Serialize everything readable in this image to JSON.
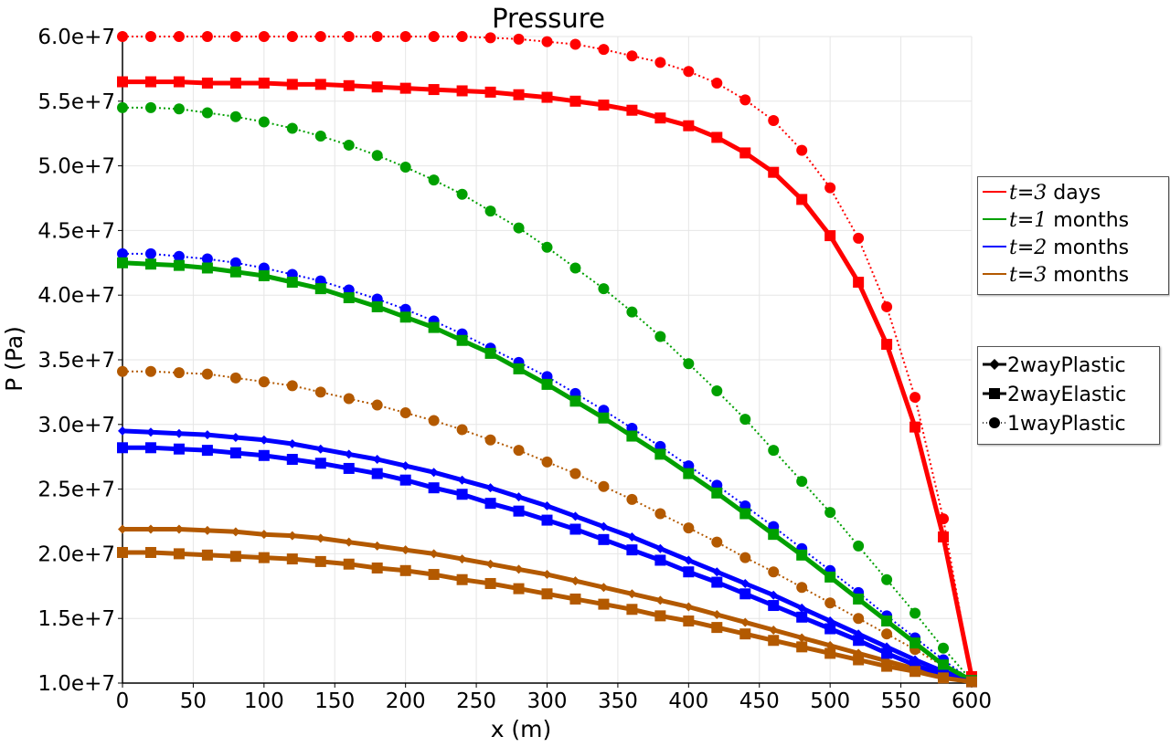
{
  "chart_data": {
    "type": "line",
    "title": "Pressure",
    "xlabel": "x (m)",
    "ylabel": "P (Pa)",
    "xlim": [
      0,
      600
    ],
    "ylim": [
      10000000,
      60000000
    ],
    "x_ticks": [
      "0",
      "50",
      "100",
      "150",
      "200",
      "250",
      "300",
      "350",
      "400",
      "450",
      "500",
      "550",
      "600"
    ],
    "y_ticks": [
      "1.0e+7",
      "1.5e+7",
      "2.0e+7",
      "2.5e+7",
      "3.0e+7",
      "3.5e+7",
      "4.0e+7",
      "4.5e+7",
      "5.0e+7",
      "5.5e+7",
      "6.0e+7"
    ],
    "grid": true,
    "x": [
      0,
      20,
      40,
      60,
      80,
      100,
      120,
      140,
      160,
      180,
      200,
      220,
      240,
      260,
      280,
      300,
      320,
      340,
      360,
      380,
      400,
      420,
      440,
      460,
      480,
      500,
      520,
      540,
      560,
      580,
      600
    ],
    "time_legend": [
      {
        "t": "t",
        "eq": "=",
        "n": "3",
        "unit": "days",
        "color": "#ff0000"
      },
      {
        "t": "t",
        "eq": "=",
        "n": "1",
        "unit": "months",
        "color": "#00a000"
      },
      {
        "t": "t",
        "eq": "=",
        "n": "2",
        "unit": "months",
        "color": "#0000ff"
      },
      {
        "t": "t",
        "eq": "=",
        "n": "3",
        "unit": "months",
        "color": "#b35900"
      }
    ],
    "type_legend": [
      {
        "label": "2wayPlastic",
        "marker": "diamond",
        "line": "solid"
      },
      {
        "label": "2wayElastic",
        "marker": "square",
        "line": "solid"
      },
      {
        "label": "1wayPlastic",
        "marker": "circle",
        "line": "dotted"
      }
    ],
    "series": [
      {
        "time": 0,
        "kind": "1wayPlastic",
        "color": "#ff0000",
        "values": [
          60000000.0,
          60000000.0,
          60000000.0,
          60000000.0,
          60000000.0,
          60000000.0,
          60000000.0,
          60000000.0,
          60000000.0,
          60000000.0,
          60000000.0,
          60000000.0,
          60000000.0,
          59900000.0,
          59800000.0,
          59600000.0,
          59400000.0,
          59000000.0,
          58500000.0,
          58000000.0,
          57300000.0,
          56400000.0,
          55100000.0,
          53500000.0,
          51200000.0,
          48300000.0,
          44400000.0,
          39100000.0,
          32100000.0,
          22700000.0,
          10500000.0
        ]
      },
      {
        "time": 0,
        "kind": "2wayElastic",
        "color": "#ff0000",
        "values": [
          56500000.0,
          56500000.0,
          56500000.0,
          56400000.0,
          56400000.0,
          56400000.0,
          56300000.0,
          56300000.0,
          56200000.0,
          56100000.0,
          56000000.0,
          55900000.0,
          55800000.0,
          55700000.0,
          55500000.0,
          55300000.0,
          55000000.0,
          54700000.0,
          54300000.0,
          53700000.0,
          53100000.0,
          52200000.0,
          51000000.0,
          49500000.0,
          47400000.0,
          44600000.0,
          41000000.0,
          36200000.0,
          29800000.0,
          21300000.0,
          10500000.0
        ]
      },
      {
        "time": 1,
        "kind": "1wayPlastic",
        "color": "#00a000",
        "values": [
          54500000.0,
          54500000.0,
          54400000.0,
          54100000.0,
          53800000.0,
          53400000.0,
          52900000.0,
          52300000.0,
          51600000.0,
          50800000.0,
          49900000.0,
          48900000.0,
          47800000.0,
          46500000.0,
          45200000.0,
          43700000.0,
          42100000.0,
          40500000.0,
          38700000.0,
          36800000.0,
          34700000.0,
          32600000.0,
          30400000.0,
          28000000.0,
          25600000.0,
          23200000.0,
          20600000.0,
          18000000.0,
          15400000.0,
          12700000.0,
          10200000.0
        ]
      },
      {
        "time": 1,
        "kind": "2wayElastic",
        "color": "#00a000",
        "values": [
          42500000.0,
          42400000.0,
          42300000.0,
          42100000.0,
          41800000.0,
          41500000.0,
          41000000.0,
          40500000.0,
          39800000.0,
          39100000.0,
          38300000.0,
          37500000.0,
          36500000.0,
          35500000.0,
          34300000.0,
          33100000.0,
          31800000.0,
          30500000.0,
          29100000.0,
          27700000.0,
          26200000.0,
          24700000.0,
          23100000.0,
          21500000.0,
          19900000.0,
          18200000.0,
          16500000.0,
          14800000.0,
          13100000.0,
          11400000.0,
          10200000.0
        ]
      },
      {
        "time": 2,
        "kind": "1wayPlastic",
        "color": "#0000ff",
        "values": [
          43200000.0,
          43200000.0,
          43000000.0,
          42800000.0,
          42500000.0,
          42100000.0,
          41600000.0,
          41100000.0,
          40400000.0,
          39700000.0,
          38900000.0,
          38000000.0,
          37000000.0,
          35900000.0,
          34800000.0,
          33700000.0,
          32400000.0,
          31100000.0,
          29700000.0,
          28300000.0,
          26800000.0,
          25300000.0,
          23700000.0,
          22100000.0,
          20400000.0,
          18700000.0,
          17000000.0,
          15200000.0,
          13500000.0,
          11800000.0,
          10200000.0
        ]
      },
      {
        "time": 2,
        "kind": "2wayPlastic",
        "color": "#0000ff",
        "values": [
          29500000.0,
          29400000.0,
          29300000.0,
          29200000.0,
          29000000.0,
          28800000.0,
          28500000.0,
          28100000.0,
          27700000.0,
          27300000.0,
          26800000.0,
          26300000.0,
          25700000.0,
          25100000.0,
          24400000.0,
          23700000.0,
          22900000.0,
          22100000.0,
          21300000.0,
          20400000.0,
          19500000.0,
          18600000.0,
          17700000.0,
          16800000.0,
          15800000.0,
          14800000.0,
          13800000.0,
          12800000.0,
          11800000.0,
          10900000.0,
          10200000.0
        ]
      },
      {
        "time": 2,
        "kind": "2wayElastic",
        "color": "#0000ff",
        "values": [
          28200000.0,
          28200000.0,
          28100000.0,
          28000000.0,
          27800000.0,
          27600000.0,
          27300000.0,
          27000000.0,
          26600000.0,
          26200000.0,
          25700000.0,
          25100000.0,
          24600000.0,
          23900000.0,
          23300000.0,
          22600000.0,
          21900000.0,
          21100000.0,
          20300000.0,
          19500000.0,
          18600000.0,
          17800000.0,
          16900000.0,
          16000000.0,
          15100000.0,
          14200000.0,
          13300000.0,
          12300000.0,
          11400000.0,
          10600000.0,
          10100000.0
        ]
      },
      {
        "time": 3,
        "kind": "1wayPlastic",
        "color": "#b35900",
        "values": [
          34100000.0,
          34100000.0,
          34000000.0,
          33900000.0,
          33600000.0,
          33300000.0,
          33000000.0,
          32500000.0,
          32000000.0,
          31500000.0,
          30900000.0,
          30300000.0,
          29600000.0,
          28800000.0,
          28000000.0,
          27100000.0,
          26200000.0,
          25200000.0,
          24200000.0,
          23100000.0,
          22000000.0,
          20900000.0,
          19700000.0,
          18600000.0,
          17400000.0,
          16200000.0,
          15000000.0,
          13800000.0,
          12600000.0,
          11300000.0,
          10100000.0
        ]
      },
      {
        "time": 3,
        "kind": "2wayPlastic",
        "color": "#b35900",
        "values": [
          21900000.0,
          21900000.0,
          21900000.0,
          21800000.0,
          21700000.0,
          21500000.0,
          21400000.0,
          21200000.0,
          20900000.0,
          20600000.0,
          20300000.0,
          20000000.0,
          19600000.0,
          19200000.0,
          18800000.0,
          18400000.0,
          17900000.0,
          17400000.0,
          16900000.0,
          16400000.0,
          15900000.0,
          15300000.0,
          14700000.0,
          14100000.0,
          13500000.0,
          12900000.0,
          12300000.0,
          11700000.0,
          11100000.0,
          10600000.0,
          10100000.0
        ]
      },
      {
        "time": 3,
        "kind": "2wayElastic",
        "color": "#b35900",
        "values": [
          20100000.0,
          20100000.0,
          20000000.0,
          19900000.0,
          19800000.0,
          19700000.0,
          19600000.0,
          19400000.0,
          19200000.0,
          18900000.0,
          18700000.0,
          18400000.0,
          18000000.0,
          17700000.0,
          17300000.0,
          16900000.0,
          16500000.0,
          16100000.0,
          15700000.0,
          15200000.0,
          14800000.0,
          14300000.0,
          13800000.0,
          13300000.0,
          12800000.0,
          12300000.0,
          11800000.0,
          11300000.0,
          10900000.0,
          10400000.0,
          10100000.0
        ]
      }
    ]
  }
}
